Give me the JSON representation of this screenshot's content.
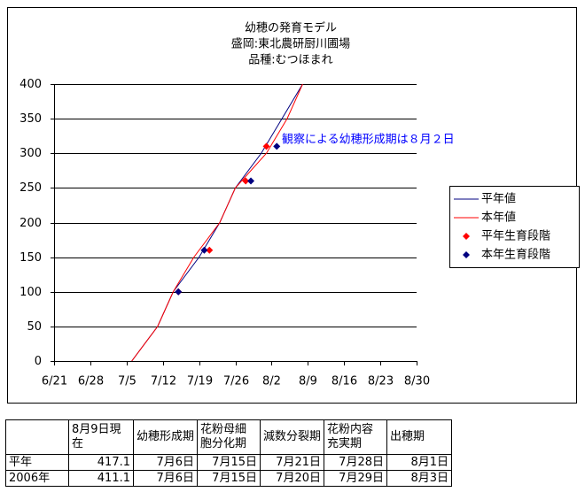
{
  "chart_data": {
    "type": "line",
    "title_lines": [
      "幼穂の発育モデル",
      "盛岡:東北農研厨川圃場",
      "品種:むつほまれ"
    ],
    "annotation": "観察による幼穂形成期は８月２日",
    "xlim": [
      "6/21",
      "8/30"
    ],
    "xticks": [
      "6/21",
      "6/28",
      "7/5",
      "7/12",
      "7/19",
      "7/26",
      "8/2",
      "8/9",
      "8/16",
      "8/23",
      "8/30"
    ],
    "ylim": [
      0,
      400
    ],
    "yticks": [
      0,
      50,
      100,
      150,
      200,
      250,
      300,
      350,
      400
    ],
    "grid": true,
    "legend": "right",
    "series": [
      {
        "name": "平年値",
        "style": "line",
        "color": "#000080",
        "x": [
          "7/6",
          "7/11",
          "7/14",
          "7/19",
          "7/23",
          "7/26",
          "7/31",
          "8/4",
          "8/8"
        ],
        "values": [
          0,
          50,
          100,
          150,
          200,
          250,
          300,
          350,
          400
        ]
      },
      {
        "name": "本年値",
        "style": "line",
        "color": "#ff0000",
        "x": [
          "7/6",
          "7/11",
          "7/14",
          "7/18",
          "7/23",
          "7/26",
          "8/1",
          "8/5",
          "8/8"
        ],
        "values": [
          0,
          50,
          100,
          150,
          200,
          250,
          300,
          350,
          400
        ]
      },
      {
        "name": "平年生育段階",
        "style": "marker",
        "color": "#ff0000",
        "x": [
          "7/15",
          "7/21",
          "7/28",
          "8/1"
        ],
        "values": [
          100,
          160,
          260,
          310
        ]
      },
      {
        "name": "本年生育段階",
        "style": "marker",
        "color": "#000080",
        "x": [
          "7/15",
          "7/20",
          "7/29",
          "8/3"
        ],
        "values": [
          100,
          160,
          260,
          310
        ]
      }
    ]
  },
  "table": {
    "header": [
      "8月9日現在",
      "幼穂形成期",
      "花粉母細胞分化期",
      "減数分裂期",
      "花粉内容充実期",
      "出穂期"
    ],
    "rows": [
      [
        "平年",
        417.1,
        "7月6日",
        "7月15日",
        "7月21日",
        "7月28日",
        "8月1日"
      ],
      [
        "2006年",
        411.1,
        "7月6日",
        "7月15日",
        "7月20日",
        "7月29日",
        "8月3日"
      ]
    ]
  }
}
